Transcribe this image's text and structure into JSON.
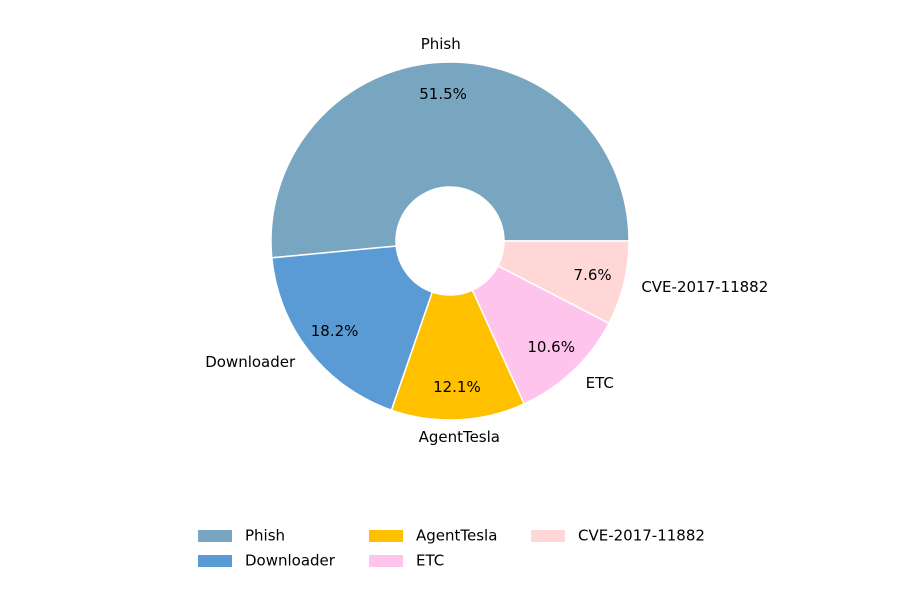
{
  "chart_data": {
    "type": "donut",
    "categories": [
      "Phish",
      "Downloader",
      "AgentTesla",
      "ETC",
      "CVE-2017-11882"
    ],
    "values": [
      51.5,
      18.2,
      12.1,
      10.6,
      7.6
    ],
    "value_labels": [
      "51.5%",
      "18.2%",
      "12.1%",
      "10.6%",
      "7.6%"
    ],
    "colors": [
      "#78a5c0",
      "#5b9bd5",
      "#ffc000",
      "#ffc4ec",
      "#ffd7d7"
    ],
    "legend": "bottom"
  }
}
